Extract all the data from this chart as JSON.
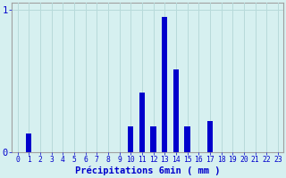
{
  "values": [
    0,
    0.13,
    0,
    0,
    0,
    0,
    0,
    0,
    0,
    0,
    0.18,
    0.42,
    0.18,
    0.95,
    0.58,
    0.18,
    0,
    0.22,
    0,
    0,
    0,
    0,
    0,
    0
  ],
  "xlabel": "Précipitations 6min ( mm )",
  "ylim": [
    0,
    1.05
  ],
  "yticks": [
    0,
    1
  ],
  "ytick_labels": [
    "0",
    "1"
  ],
  "bar_color": "#0000cc",
  "bg_color": "#d6f0f0",
  "grid_color": "#b8dada",
  "axis_color": "#a0a0a0",
  "text_color": "#0000cc",
  "xlabel_fontsize": 7.5,
  "tick_fontsize": 5.8,
  "ytick_fontsize": 7.5
}
